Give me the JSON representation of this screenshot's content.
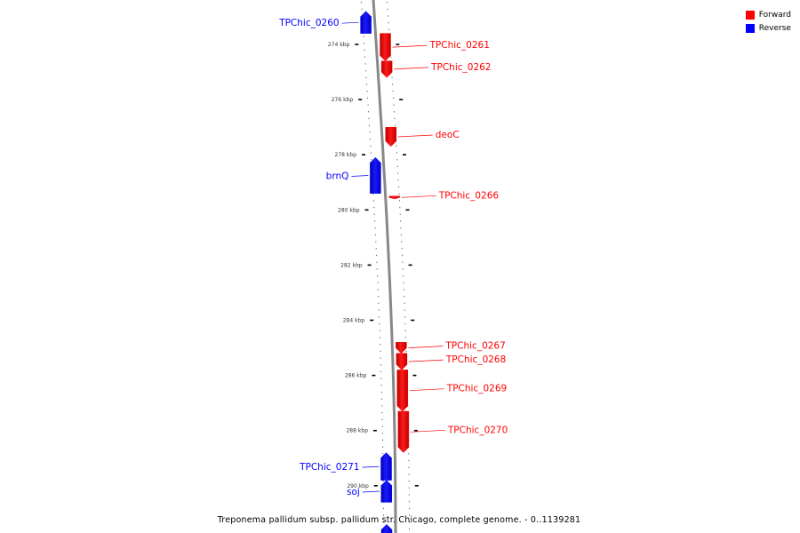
{
  "colors": {
    "forward": "#ff0000",
    "reverse": "#0000ff",
    "backbone": "#888888"
  },
  "legend": {
    "forward": "Forward",
    "reverse": "Reverse"
  },
  "caption": "Treponema pallidum subsp. pallidum str. Chicago, complete genome. - 0..1139281",
  "tick_unit": "kbp",
  "ticks_kbp": [
    274,
    276,
    278,
    280,
    282,
    284,
    286,
    288,
    290
  ],
  "genes": [
    {
      "name": "TPChic_0260",
      "strand": "reverse",
      "start_kbp": 272.8,
      "end_kbp": 273.6,
      "icon": "reverse-gene-arrow"
    },
    {
      "name": "TPChic_0261",
      "strand": "forward",
      "start_kbp": 273.6,
      "end_kbp": 274.6,
      "icon": "forward-gene-arrow"
    },
    {
      "name": "TPChic_0262",
      "strand": "forward",
      "start_kbp": 274.6,
      "end_kbp": 275.2,
      "icon": "forward-gene-arrow"
    },
    {
      "name": "deoC",
      "strand": "forward",
      "start_kbp": 277.0,
      "end_kbp": 277.7,
      "icon": "forward-gene-arrow"
    },
    {
      "name": "brnQ",
      "strand": "reverse",
      "start_kbp": 278.1,
      "end_kbp": 279.4,
      "icon": "reverse-gene-arrow"
    },
    {
      "name": "TPChic_0266",
      "strand": "forward",
      "start_kbp": 279.5,
      "end_kbp": 279.6,
      "icon": "forward-gene-arrow"
    },
    {
      "name": "TPChic_0267",
      "strand": "forward",
      "start_kbp": 284.8,
      "end_kbp": 285.2,
      "icon": "forward-gene-arrow"
    },
    {
      "name": "TPChic_0268",
      "strand": "forward",
      "start_kbp": 285.2,
      "end_kbp": 285.8,
      "icon": "forward-gene-arrow"
    },
    {
      "name": "TPChic_0269",
      "strand": "forward",
      "start_kbp": 285.8,
      "end_kbp": 287.3,
      "icon": "forward-gene-arrow"
    },
    {
      "name": "TPChic_0270",
      "strand": "forward",
      "start_kbp": 287.3,
      "end_kbp": 288.8,
      "icon": "forward-gene-arrow"
    },
    {
      "name": "TPChic_0271",
      "strand": "reverse",
      "start_kbp": 288.8,
      "end_kbp": 289.8,
      "icon": "reverse-gene-arrow"
    },
    {
      "name": "soj",
      "strand": "reverse",
      "start_kbp": 289.8,
      "end_kbp": 290.6,
      "icon": "reverse-gene-arrow"
    },
    {
      "name": "",
      "strand": "reverse",
      "start_kbp": 291.4,
      "end_kbp": 291.9,
      "icon": "reverse-gene-arrow"
    }
  ]
}
